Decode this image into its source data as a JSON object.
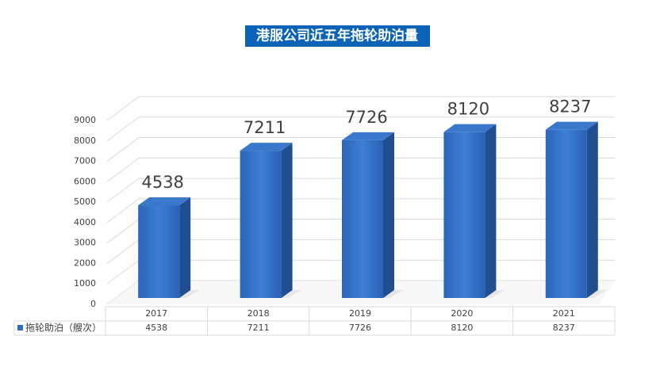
{
  "chart_data": {
    "type": "bar3d",
    "title": "港服公司近五年拖轮助泊量",
    "categories": [
      "2017",
      "2018",
      "2019",
      "2020",
      "2021"
    ],
    "series": [
      {
        "name": "拖轮助泊（艘次）",
        "color": "#2e6fc4",
        "values": [
          4538,
          7211,
          7726,
          8120,
          8237
        ]
      }
    ],
    "ylim": [
      0,
      9000
    ],
    "yticks": [
      0,
      1000,
      2000,
      3000,
      4000,
      5000,
      6000,
      7000,
      8000,
      9000
    ],
    "grid": true
  }
}
